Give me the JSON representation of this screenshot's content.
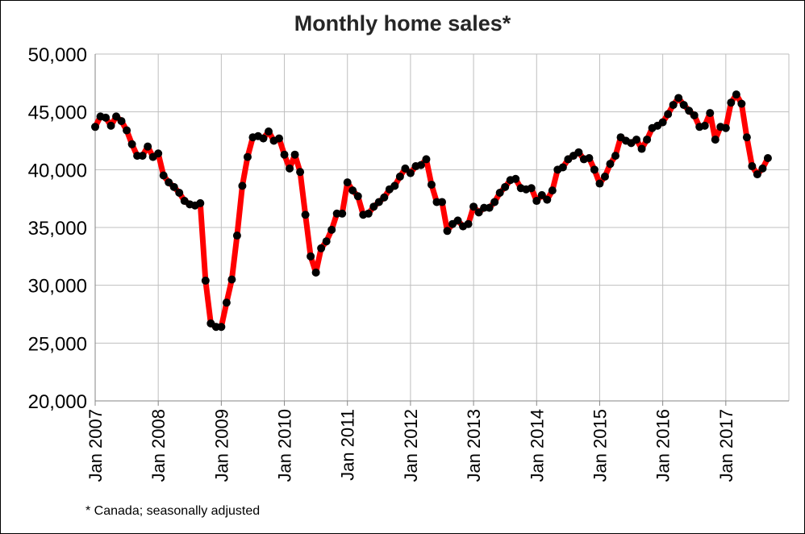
{
  "chart_data": {
    "type": "line",
    "title": "Monthly home sales*",
    "footnote": "* Canada; seasonally adjusted",
    "ylim": [
      20000,
      50000
    ],
    "y_ticks": [
      20000,
      25000,
      30000,
      35000,
      40000,
      45000,
      50000
    ],
    "y_tick_labels": [
      "20,000",
      "25,000",
      "30,000",
      "35,000",
      "40,000",
      "45,000",
      "50,000"
    ],
    "x_tick_labels": [
      "Jan 2007",
      "Jan 2008",
      "Jan 2009",
      "Jan 2010",
      "Jan 2011",
      "Jan 2012",
      "Jan 2013",
      "Jan 2014",
      "Jan 2015",
      "Jan 2016",
      "Jan 2017"
    ],
    "x_start": "2007-01",
    "grid": true,
    "line_color": "#ff0000",
    "marker_color": "#000000",
    "series": [
      {
        "values": [
          43700,
          44600,
          44500,
          43800,
          44600,
          44200,
          43400,
          42200,
          41200,
          41200,
          42000,
          41100,
          41400,
          39500,
          38900,
          38500,
          38000,
          37300,
          37000,
          36900,
          37100,
          30400,
          26700,
          26400,
          26400,
          28500,
          30500,
          34300,
          38600,
          41100,
          42800,
          42900,
          42700,
          43300,
          42500,
          42700,
          41300,
          40100,
          41300,
          39800,
          36100,
          32500,
          31100,
          33200,
          33800,
          34800,
          36200,
          36200,
          38900,
          38200,
          37700,
          36100,
          36200,
          36800,
          37200,
          37600,
          38300,
          38600,
          39400,
          40100,
          39700,
          40300,
          40400,
          40900,
          38700,
          37200,
          37200,
          34700,
          35300,
          35600,
          35100,
          35300,
          36800,
          36300,
          36700,
          36700,
          37200,
          38000,
          38500,
          39100,
          39200,
          38400,
          38300,
          38400,
          37300,
          37800,
          37400,
          38200,
          40000,
          40200,
          40900,
          41200,
          41500,
          40900,
          41000,
          40000,
          38800,
          39400,
          40500,
          41200,
          42800,
          42500,
          42300,
          42600,
          41800,
          42600,
          43600,
          43800,
          44100,
          44800,
          45600,
          46200,
          45600,
          45100,
          44700,
          43700,
          43800,
          44900,
          42600,
          43700,
          43600,
          45800,
          46500,
          45700,
          42800,
          40300,
          39600,
          40100,
          41000
        ]
      }
    ]
  }
}
